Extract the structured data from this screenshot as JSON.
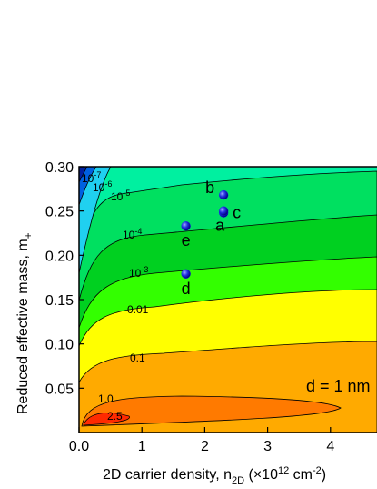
{
  "chart_data": {
    "type": "contour",
    "x_label": {
      "text": "2D carrier density, n",
      "sub": "2D",
      "text2": " (×10",
      "sup": "12",
      "text3": " cm",
      "sup2": "-2",
      "text4": ")"
    },
    "y_label": {
      "text": "Reduced effective mass, m",
      "sub": "+"
    },
    "xlim": [
      0,
      4.74
    ],
    "ylim": [
      0,
      0.3
    ],
    "xticks": [
      {
        "value": 0,
        "label": "0.0"
      },
      1,
      2,
      3,
      4
    ],
    "yticks": [
      0.05,
      {
        "value": 0.1,
        "label": "0.10"
      },
      0.15,
      {
        "value": 0.2,
        "label": "0.20"
      },
      0.25,
      {
        "value": 0.3,
        "label": "0.30"
      }
    ],
    "contour_labels": [
      {
        "text": "10",
        "sup": "-7"
      },
      {
        "text": "10",
        "sup": "-6"
      },
      {
        "text": "10",
        "sup": "-5"
      },
      {
        "text": "10",
        "sup": "-4"
      },
      {
        "text": "10",
        "sup": "-3"
      },
      {
        "text": "0.01"
      },
      {
        "text": "0.1"
      },
      {
        "text": "1.0"
      },
      {
        "text": "2.5"
      }
    ],
    "points": {
      "labels": [
        "a",
        "b",
        "c",
        "d",
        "e"
      ],
      "x": [
        2.3,
        2.3,
        2.3,
        1.7,
        1.7
      ],
      "y": [
        0.248,
        0.268,
        0.25,
        0.179,
        0.233
      ],
      "color": "#1a1aff"
    },
    "annotation": "d = 1 nm"
  }
}
